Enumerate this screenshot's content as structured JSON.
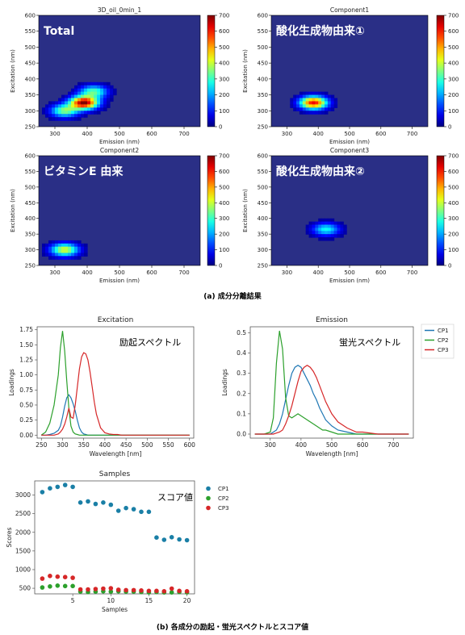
{
  "captions": {
    "a": "(a) 成分分離結果",
    "b": "(b) 各成分の励起・蛍光スペクトルとスコア値"
  },
  "colors": {
    "CP1": "#1f77b4",
    "CP2": "#2ca02c",
    "CP3": "#d62728",
    "samples_CP1": "#1a7fa6",
    "heatmap_background": "#2a2f86"
  },
  "chart_data": [
    {
      "type": "heatmap",
      "title": "3D_oil_0min_1",
      "annotation": "Total",
      "xlabel": "Emission (nm)",
      "ylabel": "Excitation (nm)",
      "xlim": [
        250,
        750
      ],
      "ylim": [
        250,
        600
      ],
      "xticks": [
        300,
        400,
        500,
        600,
        700
      ],
      "yticks": [
        250,
        300,
        350,
        400,
        450,
        500,
        550,
        600
      ],
      "colorbar": {
        "min": 0,
        "max": 700,
        "ticks": [
          0,
          100,
          200,
          300,
          400,
          500,
          600,
          700
        ],
        "colormap": "jet"
      },
      "peaks": [
        {
          "em": 390,
          "ex": 325,
          "intensity": 700
        },
        {
          "em": 330,
          "ex": 300,
          "intensity": 350
        },
        {
          "em": 420,
          "ex": 360,
          "intensity": 320
        }
      ]
    },
    {
      "type": "heatmap",
      "title": "Component1",
      "annotation": "酸化生成物由来①",
      "xlabel": "Emission (nm)",
      "ylabel": "Excitation (nm)",
      "xlim": [
        250,
        750
      ],
      "ylim": [
        250,
        600
      ],
      "xticks": [
        300,
        400,
        500,
        600,
        700
      ],
      "yticks": [
        250,
        300,
        350,
        400,
        450,
        500,
        550,
        600
      ],
      "colorbar": {
        "min": 0,
        "max": 700,
        "ticks": [
          0,
          100,
          200,
          300,
          400,
          500,
          600,
          700
        ],
        "colormap": "jet"
      },
      "peaks": [
        {
          "em": 385,
          "ex": 325,
          "intensity": 620
        }
      ]
    },
    {
      "type": "heatmap",
      "title": "Component2",
      "annotation": "ビタミンE 由来",
      "xlabel": "Emission (nm)",
      "ylabel": "Excitation (nm)",
      "xlim": [
        250,
        750
      ],
      "ylim": [
        250,
        600
      ],
      "xticks": [
        300,
        400,
        500,
        600,
        700
      ],
      "yticks": [
        250,
        300,
        350,
        400,
        450,
        500,
        550,
        600
      ],
      "colorbar": {
        "min": 0,
        "max": 700,
        "ticks": [
          0,
          100,
          200,
          300,
          400,
          500,
          600,
          700
        ],
        "colormap": "jet"
      },
      "peaks": [
        {
          "em": 330,
          "ex": 300,
          "intensity": 420
        }
      ]
    },
    {
      "type": "heatmap",
      "title": "Component3",
      "annotation": "酸化生成物由来②",
      "xlabel": "Emission (nm)",
      "ylabel": "Excitation (nm)",
      "xlim": [
        250,
        750
      ],
      "ylim": [
        250,
        600
      ],
      "xticks": [
        300,
        400,
        500,
        600,
        700
      ],
      "yticks": [
        250,
        300,
        350,
        400,
        450,
        500,
        550,
        600
      ],
      "colorbar": {
        "min": 0,
        "max": 700,
        "ticks": [
          0,
          100,
          200,
          300,
          400,
          500,
          600,
          700
        ],
        "colormap": "jet"
      },
      "peaks": [
        {
          "em": 425,
          "ex": 365,
          "intensity": 270
        }
      ]
    },
    {
      "type": "line",
      "title": "Excitation",
      "annotation": "励起スペクトル",
      "xlabel": "Wavelength [nm]",
      "ylabel": "Loadings",
      "xlim": [
        240,
        610
      ],
      "ylim": [
        -0.05,
        1.8
      ],
      "xticks": [
        250,
        300,
        350,
        400,
        450,
        500,
        550,
        600
      ],
      "yticks": [
        0.0,
        0.25,
        0.5,
        0.75,
        1.0,
        1.25,
        1.5,
        1.75
      ],
      "x": [
        250,
        260,
        270,
        280,
        290,
        295,
        300,
        305,
        310,
        315,
        320,
        325,
        330,
        335,
        340,
        345,
        350,
        355,
        360,
        365,
        370,
        375,
        380,
        390,
        400,
        410,
        420,
        430,
        440,
        450,
        500,
        550,
        600
      ],
      "series": [
        {
          "name": "CP1",
          "values": [
            0,
            0,
            0.01,
            0.03,
            0.08,
            0.15,
            0.3,
            0.48,
            0.62,
            0.67,
            0.62,
            0.52,
            0.4,
            0.25,
            0.12,
            0.05,
            0.02,
            0.01,
            0,
            0,
            0,
            0,
            0,
            0,
            0,
            0,
            0,
            0,
            0,
            0,
            0,
            0,
            0
          ]
        },
        {
          "name": "CP2",
          "values": [
            0,
            0.05,
            0.2,
            0.5,
            1.0,
            1.45,
            1.73,
            1.4,
            0.9,
            0.45,
            0.15,
            0.05,
            0.02,
            0.01,
            0,
            0,
            0,
            0,
            0,
            0,
            0,
            0,
            0,
            0,
            0,
            0,
            0,
            0,
            0,
            0,
            0,
            0,
            0
          ]
        },
        {
          "name": "CP3",
          "values": [
            0,
            0,
            0,
            0,
            0.02,
            0.05,
            0.1,
            0.18,
            0.3,
            0.45,
            0.3,
            0.28,
            0.5,
            0.8,
            1.1,
            1.3,
            1.37,
            1.35,
            1.25,
            1.05,
            0.8,
            0.55,
            0.35,
            0.12,
            0.04,
            0.02,
            0.01,
            0.01,
            0,
            0,
            0,
            0,
            0
          ]
        }
      ]
    },
    {
      "type": "line",
      "title": "Emission",
      "annotation": "蛍光スペクトル",
      "xlabel": "Wavelength [nm]",
      "ylabel": "Loadings",
      "xlim": [
        235,
        765
      ],
      "ylim": [
        -0.02,
        0.53
      ],
      "xticks": [
        300,
        400,
        500,
        600,
        700
      ],
      "yticks": [
        0.0,
        0.1,
        0.2,
        0.3,
        0.4,
        0.5
      ],
      "legend": {
        "position": "outside-right",
        "entries": [
          "CP1",
          "CP2",
          "CP3"
        ]
      },
      "x": [
        250,
        280,
        300,
        310,
        320,
        330,
        340,
        350,
        360,
        370,
        380,
        390,
        400,
        410,
        420,
        430,
        440,
        450,
        460,
        470,
        480,
        500,
        520,
        550,
        580,
        600,
        650,
        700,
        750
      ],
      "series": [
        {
          "name": "CP1",
          "values": [
            0,
            0,
            0,
            0.01,
            0.02,
            0.05,
            0.1,
            0.17,
            0.24,
            0.3,
            0.33,
            0.34,
            0.33,
            0.3,
            0.27,
            0.24,
            0.2,
            0.17,
            0.13,
            0.1,
            0.07,
            0.04,
            0.02,
            0.01,
            0,
            0,
            0,
            0,
            0
          ]
        },
        {
          "name": "CP2",
          "values": [
            0,
            0,
            0.01,
            0.08,
            0.35,
            0.51,
            0.42,
            0.18,
            0.09,
            0.08,
            0.09,
            0.1,
            0.09,
            0.08,
            0.07,
            0.06,
            0.05,
            0.04,
            0.03,
            0.02,
            0.02,
            0.01,
            0,
            0,
            0,
            0,
            0,
            0,
            0
          ]
        },
        {
          "name": "CP3",
          "values": [
            0,
            0,
            0,
            0,
            0.005,
            0.01,
            0.02,
            0.05,
            0.09,
            0.14,
            0.2,
            0.26,
            0.31,
            0.33,
            0.34,
            0.33,
            0.31,
            0.28,
            0.24,
            0.2,
            0.16,
            0.1,
            0.06,
            0.03,
            0.01,
            0.01,
            0,
            0,
            0
          ]
        }
      ]
    },
    {
      "type": "scatter",
      "title": "Samples",
      "annotation": "スコア値",
      "xlabel": "Samples",
      "ylabel": "Scores",
      "xlim": [
        0,
        21
      ],
      "ylim": [
        350,
        3380
      ],
      "xticks": [
        5,
        10,
        15,
        20
      ],
      "yticks": [
        500,
        1000,
        1500,
        2000,
        2500,
        3000
      ],
      "legend": {
        "position": "outside-right",
        "entries": [
          "CP1",
          "CP2",
          "CP3"
        ]
      },
      "x": [
        1,
        2,
        3,
        4,
        5,
        6,
        7,
        8,
        9,
        10,
        11,
        12,
        13,
        14,
        15,
        16,
        17,
        18,
        19,
        20
      ],
      "series": [
        {
          "name": "CP1",
          "values": [
            3080,
            3180,
            3220,
            3270,
            3220,
            2800,
            2830,
            2760,
            2800,
            2740,
            2580,
            2650,
            2620,
            2550,
            2550,
            1860,
            1800,
            1870,
            1810,
            1790
          ]
        },
        {
          "name": "CP2",
          "values": [
            520,
            550,
            570,
            560,
            560,
            410,
            400,
            410,
            420,
            410,
            420,
            410,
            410,
            400,
            390,
            400,
            390,
            390,
            400,
            390
          ]
        },
        {
          "name": "CP3",
          "values": [
            760,
            830,
            810,
            800,
            780,
            470,
            470,
            480,
            490,
            500,
            460,
            450,
            450,
            440,
            430,
            430,
            420,
            490,
            430,
            420
          ]
        }
      ]
    }
  ]
}
